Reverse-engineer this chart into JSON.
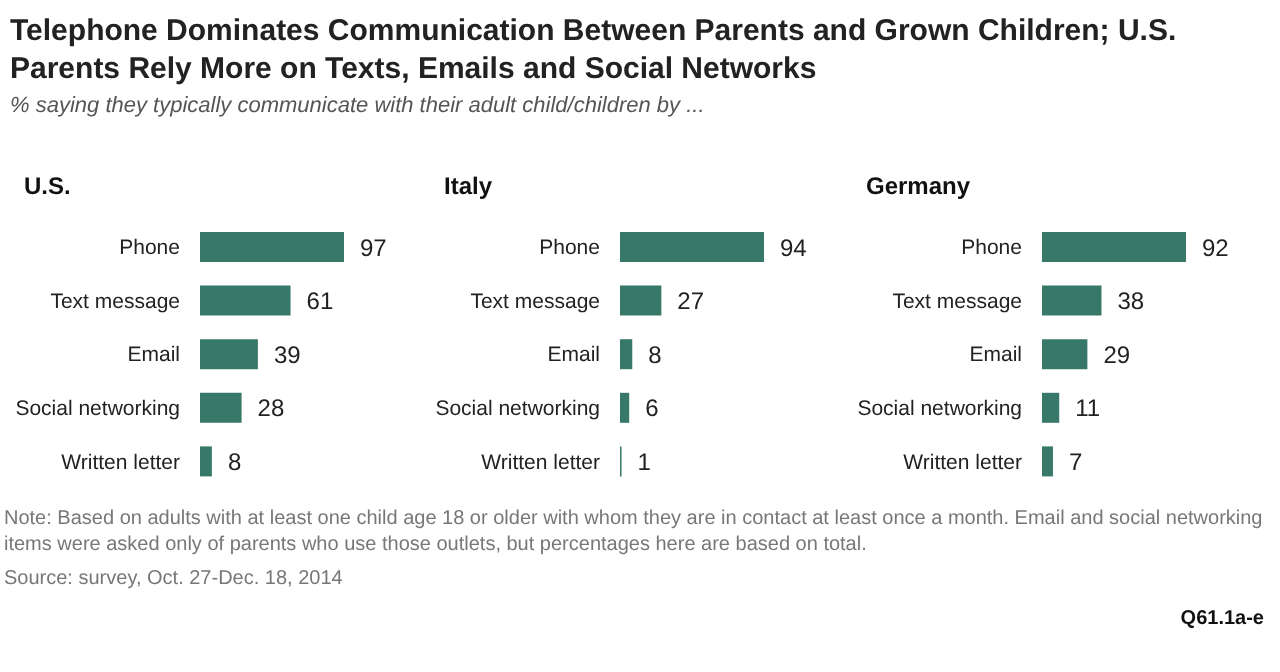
{
  "chart_data": [
    {
      "type": "other",
      "title": "Telephone Dominates Communication Between Parents and Grown Children; U.S. Parents Rely More on Texts, Emails and Social Networks",
      "subtitle": "% saying they typically communicate with their adult child/children by ...",
      "annotations": [
        "Note: Based on adults with at least one child age 18 or older with whom they are in contact at least once a month. Email and social networking items were asked only of parents who use those outlets, but percentages here are based on total.",
        "Source: survey, Oct. 27-Dec. 18, 2014",
        "Q61.1a-e"
      ]
    },
    {
      "type": "bar",
      "orientation": "horizontal",
      "title": "U.S.",
      "categories": [
        "Phone",
        "Text message",
        "Email",
        "Social networking",
        "Written letter"
      ],
      "values": [
        97,
        61,
        39,
        28,
        8
      ],
      "color": "#387868",
      "data_labels": true,
      "grid": false,
      "legend": false,
      "tick_labels": "y"
    },
    {
      "type": "bar",
      "orientation": "horizontal",
      "title": "Italy",
      "categories": [
        "Phone",
        "Text message",
        "Email",
        "Social networking",
        "Written letter"
      ],
      "values": [
        94,
        27,
        8,
        6,
        1
      ],
      "color": "#387868",
      "data_labels": true,
      "grid": false,
      "legend": false,
      "tick_labels": "y"
    },
    {
      "type": "bar",
      "orientation": "horizontal",
      "title": "Germany",
      "categories": [
        "Phone",
        "Text message",
        "Email",
        "Social networking",
        "Written letter"
      ],
      "values": [
        92,
        38,
        29,
        11,
        7
      ],
      "color": "#387868",
      "data_labels": true,
      "grid": false,
      "legend": false,
      "tick_labels": "y"
    }
  ]
}
